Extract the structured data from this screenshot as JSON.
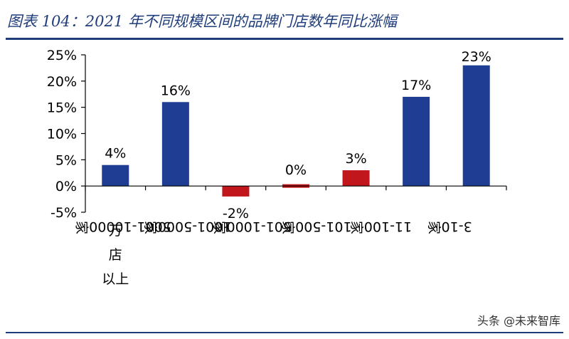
{
  "header": {
    "title": "图表 104：2021 年不同规模区间的品牌门店数年同比涨幅"
  },
  "watermark": "头条 @未来智库",
  "chart_data": {
    "type": "bar",
    "title": "",
    "xlabel": "",
    "ylabel": "",
    "categories": [
      "万店以上",
      "5001-10000家",
      "1001-5000家",
      "501-1000家",
      "101-500家",
      "11-100家",
      "3-10家"
    ],
    "values": [
      4,
      16,
      -2,
      0,
      3,
      17,
      23
    ],
    "data_labels": [
      "4%",
      "16%",
      "-2%",
      "0%",
      "3%",
      "17%",
      "23%"
    ],
    "ylim": [
      -5,
      25
    ],
    "yticks": [
      -5,
      0,
      5,
      10,
      15,
      20,
      25
    ],
    "ytick_labels": [
      "-5%",
      "0%",
      "5%",
      "10%",
      "15%",
      "20%",
      "25%"
    ],
    "bar_colors": [
      "#1f3e93",
      "#1f3e93",
      "#c0161c",
      "#c0161c",
      "#c0161c",
      "#1f3e93",
      "#1f3e93"
    ],
    "grid": false,
    "legend": "none"
  }
}
